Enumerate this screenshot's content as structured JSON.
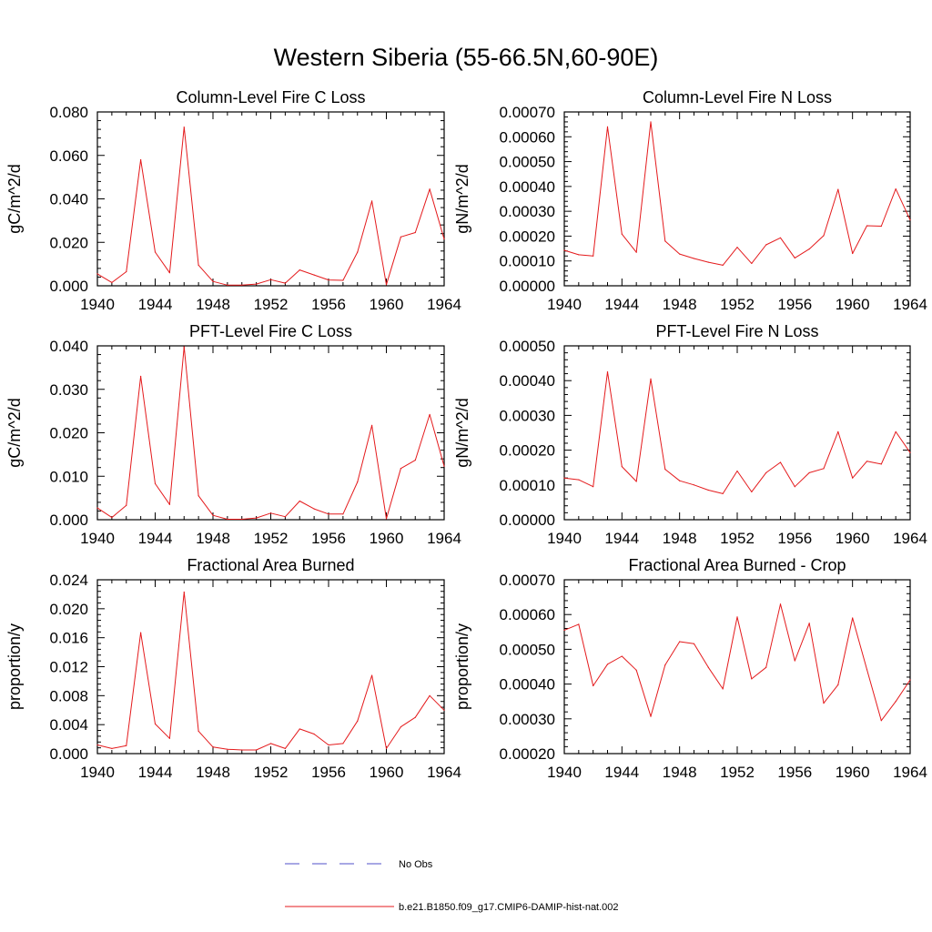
{
  "title": "Western Siberia (55-66.5N,60-90E)",
  "legend": [
    {
      "label": "No Obs",
      "color": "#5050c8",
      "dash": true
    },
    {
      "label": "b.e21.B1850.f09_g17.CMIP6-DAMIP-hist-nat.002",
      "color": "#e41a1c",
      "dash": false
    }
  ],
  "chart_data": [
    {
      "type": "line",
      "title": "Column-Level Fire C Loss",
      "ylabel": "gC/m^2/d",
      "xlim": [
        1940,
        1964
      ],
      "ylim": [
        0,
        0.08
      ],
      "xticks": [
        "1940",
        "1944",
        "1948",
        "1952",
        "1956",
        "1960",
        "1964"
      ],
      "yticks": [
        "0.000",
        "0.020",
        "0.040",
        "0.060",
        "0.080"
      ],
      "x": [
        1940,
        1941,
        1942,
        1943,
        1944,
        1945,
        1946,
        1947,
        1948,
        1949,
        1950,
        1951,
        1952,
        1953,
        1954,
        1955,
        1956,
        1957,
        1958,
        1959,
        1960,
        1961,
        1962,
        1963,
        1964
      ],
      "series": [
        {
          "name": "b.e21.B1850.f09_g17.CMIP6-DAMIP-hist-nat.002",
          "values": [
            0.0055,
            0.0015,
            0.0065,
            0.058,
            0.0155,
            0.006,
            0.073,
            0.0095,
            0.002,
            0.0003,
            0.0003,
            0.0008,
            0.0028,
            0.0012,
            0.0073,
            0.005,
            0.0027,
            0.0025,
            0.0155,
            0.039,
            0.0005,
            0.0225,
            0.0245,
            0.0445,
            0.0215
          ]
        }
      ]
    },
    {
      "type": "line",
      "title": "Column-Level Fire N Loss",
      "ylabel": "gN/m^2/d",
      "xlim": [
        1940,
        1964
      ],
      "ylim": [
        0,
        0.0007
      ],
      "xticks": [
        "1940",
        "1944",
        "1948",
        "1952",
        "1956",
        "1960",
        "1964"
      ],
      "yticks": [
        "0.00000",
        "0.00010",
        "0.00020",
        "0.00030",
        "0.00040",
        "0.00050",
        "0.00060",
        "0.00070"
      ],
      "x": [
        1940,
        1941,
        1942,
        1943,
        1944,
        1945,
        1946,
        1947,
        1948,
        1949,
        1950,
        1951,
        1952,
        1953,
        1954,
        1955,
        1956,
        1957,
        1958,
        1959,
        1960,
        1961,
        1962,
        1963,
        1964
      ],
      "series": [
        {
          "name": "b.e21.B1850.f09_g17.CMIP6-DAMIP-hist-nat.002",
          "values": [
            0.000143,
            0.000125,
            0.00012,
            0.00064,
            0.000208,
            0.000135,
            0.00066,
            0.00018,
            0.000128,
            0.00011,
            9.5e-05,
            8.3e-05,
            0.000155,
            9e-05,
            0.000165,
            0.000193,
            0.000112,
            0.000148,
            0.000202,
            0.000388,
            0.00013,
            0.000242,
            0.00024,
            0.00039,
            0.000265
          ]
        }
      ]
    },
    {
      "type": "line",
      "title": "PFT-Level Fire C Loss",
      "ylabel": "gC/m^2/d",
      "xlim": [
        1940,
        1964
      ],
      "ylim": [
        0,
        0.04
      ],
      "xticks": [
        "1940",
        "1944",
        "1948",
        "1952",
        "1956",
        "1960",
        "1964"
      ],
      "yticks": [
        "0.000",
        "0.010",
        "0.020",
        "0.030",
        "0.040"
      ],
      "x": [
        1940,
        1941,
        1942,
        1943,
        1944,
        1945,
        1946,
        1947,
        1948,
        1949,
        1950,
        1951,
        1952,
        1953,
        1954,
        1955,
        1956,
        1957,
        1958,
        1959,
        1960,
        1961,
        1962,
        1963,
        1964
      ],
      "series": [
        {
          "name": "b.e21.B1850.f09_g17.CMIP6-DAMIP-hist-nat.002",
          "values": [
            0.0027,
            0.0005,
            0.0033,
            0.033,
            0.0083,
            0.0035,
            0.0398,
            0.0055,
            0.001,
            0.0001,
            0.0001,
            0.0004,
            0.0015,
            0.0007,
            0.0043,
            0.0025,
            0.0013,
            0.0013,
            0.0087,
            0.0217,
            0.0002,
            0.0118,
            0.0137,
            0.0242,
            0.0123
          ]
        }
      ]
    },
    {
      "type": "line",
      "title": "PFT-Level Fire N Loss",
      "ylabel": "gN/m^2/d",
      "xlim": [
        1940,
        1964
      ],
      "ylim": [
        0,
        0.0005
      ],
      "xticks": [
        "1940",
        "1944",
        "1948",
        "1952",
        "1956",
        "1960",
        "1964"
      ],
      "yticks": [
        "0.00000",
        "0.00010",
        "0.00020",
        "0.00030",
        "0.00040",
        "0.00050"
      ],
      "x": [
        1940,
        1941,
        1942,
        1943,
        1944,
        1945,
        1946,
        1947,
        1948,
        1949,
        1950,
        1951,
        1952,
        1953,
        1954,
        1955,
        1956,
        1957,
        1958,
        1959,
        1960,
        1961,
        1962,
        1963,
        1964
      ],
      "series": [
        {
          "name": "b.e21.B1850.f09_g17.CMIP6-DAMIP-hist-nat.002",
          "values": [
            0.00012,
            0.000115,
            9.5e-05,
            0.000425,
            0.000153,
            0.00011,
            0.000405,
            0.000145,
            0.000112,
            0.0001,
            8.5e-05,
            7.5e-05,
            0.00014,
            8e-05,
            0.000135,
            0.000165,
            9.5e-05,
            0.000135,
            0.000147,
            0.000253,
            0.00012,
            0.000168,
            0.00016,
            0.000253,
            0.000193
          ]
        }
      ]
    },
    {
      "type": "line",
      "title": "Fractional Area Burned",
      "ylabel": "proportion/y",
      "xlim": [
        1940,
        1964
      ],
      "ylim": [
        0,
        0.024
      ],
      "xticks": [
        "1940",
        "1944",
        "1948",
        "1952",
        "1956",
        "1960",
        "1964"
      ],
      "yticks": [
        "0.000",
        "0.004",
        "0.008",
        "0.012",
        "0.016",
        "0.020",
        "0.024"
      ],
      "x": [
        1940,
        1941,
        1942,
        1943,
        1944,
        1945,
        1946,
        1947,
        1948,
        1949,
        1950,
        1951,
        1952,
        1953,
        1954,
        1955,
        1956,
        1957,
        1958,
        1959,
        1960,
        1961,
        1962,
        1963,
        1964
      ],
      "series": [
        {
          "name": "b.e21.B1850.f09_g17.CMIP6-DAMIP-hist-nat.002",
          "values": [
            0.0012,
            0.0007,
            0.0011,
            0.0167,
            0.0041,
            0.0021,
            0.0223,
            0.0031,
            0.0009,
            0.0006,
            0.0005,
            0.0005,
            0.0014,
            0.0007,
            0.0034,
            0.0027,
            0.0012,
            0.0014,
            0.0045,
            0.0108,
            0.0007,
            0.0037,
            0.005,
            0.008,
            0.006
          ]
        }
      ]
    },
    {
      "type": "line",
      "title": "Fractional Area Burned - Crop",
      "ylabel": "proportion/y",
      "xlim": [
        1940,
        1964
      ],
      "ylim": [
        0.0002,
        0.0007
      ],
      "xticks": [
        "1940",
        "1944",
        "1948",
        "1952",
        "1956",
        "1960",
        "1964"
      ],
      "yticks": [
        "0.00020",
        "0.00030",
        "0.00040",
        "0.00050",
        "0.00060",
        "0.00070"
      ],
      "x": [
        1940,
        1941,
        1942,
        1943,
        1944,
        1945,
        1946,
        1947,
        1948,
        1949,
        1950,
        1951,
        1952,
        1953,
        1954,
        1955,
        1956,
        1957,
        1958,
        1959,
        1960,
        1961,
        1962,
        1963,
        1964
      ],
      "series": [
        {
          "name": "b.e21.B1850.f09_g17.CMIP6-DAMIP-hist-nat.002",
          "values": [
            0.000555,
            0.000572,
            0.000395,
            0.000457,
            0.00048,
            0.00044,
            0.000307,
            0.000455,
            0.000522,
            0.000516,
            0.000448,
            0.000386,
            0.000593,
            0.000415,
            0.000448,
            0.00063,
            0.000467,
            0.000575,
            0.000345,
            0.000398,
            0.00059,
            0.000442,
            0.000295,
            0.00035,
            0.000412
          ]
        }
      ]
    }
  ]
}
